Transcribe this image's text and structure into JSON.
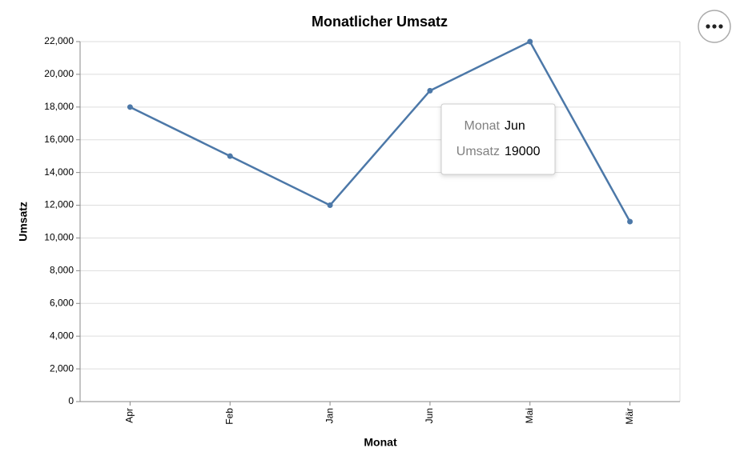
{
  "chart_data": {
    "type": "line",
    "title": "Monatlicher Umsatz",
    "x_label": "Monat",
    "y_label": "Umsatz",
    "categories": [
      "Apr",
      "Feb",
      "Jan",
      "Jun",
      "Mai",
      "Mär"
    ],
    "values": [
      18000,
      15000,
      12000,
      19000,
      22000,
      11000
    ],
    "color": "#4c78a8",
    "ylim": [
      0,
      22000
    ],
    "yticks": [
      0,
      {
        "value": 2000,
        "label": "2,000"
      },
      {
        "value": 4000,
        "label": "4,000"
      },
      {
        "value": 6000,
        "label": "6,000"
      },
      {
        "value": 8000,
        "label": "8,000"
      },
      {
        "value": 10000,
        "label": "10,000"
      },
      {
        "value": 12000,
        "label": "12,000"
      },
      {
        "value": 14000,
        "label": "14,000"
      },
      {
        "value": 16000,
        "label": "16,000"
      },
      {
        "value": 18000,
        "label": "18,000"
      },
      {
        "value": 20000,
        "label": "20,000"
      },
      {
        "value": 22000,
        "label": "22,000"
      }
    ],
    "grid": true,
    "tooltip_index": 3
  }
}
